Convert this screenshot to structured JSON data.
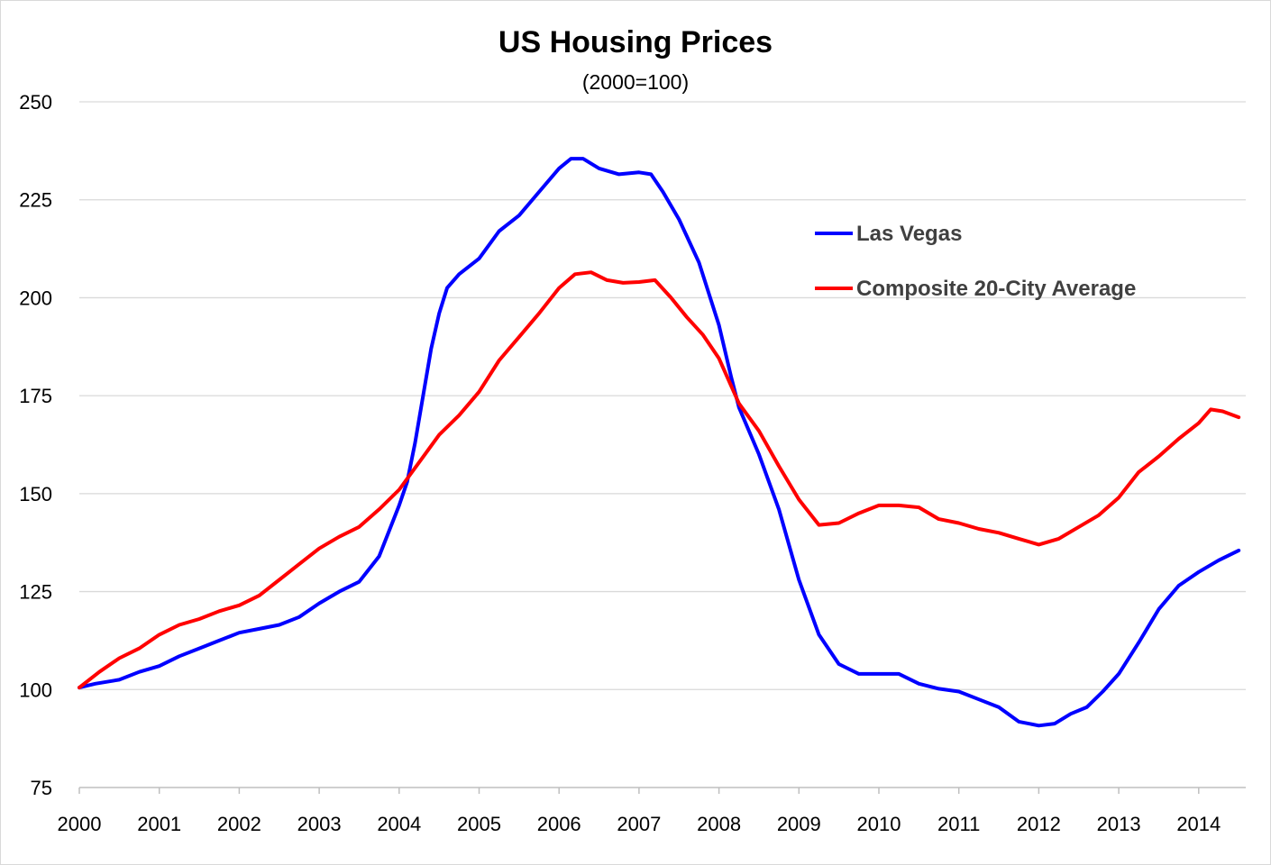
{
  "chart_data": {
    "type": "line",
    "title": "US Housing Prices",
    "subtitle": "(2000=100)",
    "xlabel": "",
    "ylabel": "",
    "xlim": [
      2000,
      2014.6
    ],
    "ylim": [
      75,
      250
    ],
    "x_ticks": [
      "2000",
      "2001",
      "2002",
      "2003",
      "2004",
      "2005",
      "2006",
      "2007",
      "2008",
      "2009",
      "2010",
      "2011",
      "2012",
      "2013",
      "2014"
    ],
    "y_ticks": [
      "75",
      "100",
      "125",
      "150",
      "175",
      "200",
      "225",
      "250"
    ],
    "grid": true,
    "legend_position": "upper-right",
    "series": [
      {
        "name": "Las Vegas",
        "color": "#0000ff",
        "points": [
          [
            2000.0,
            100.5
          ],
          [
            2000.2,
            101.5
          ],
          [
            2000.5,
            102.5
          ],
          [
            2000.75,
            104.5
          ],
          [
            2001.0,
            106.0
          ],
          [
            2001.25,
            108.5
          ],
          [
            2001.5,
            110.5
          ],
          [
            2001.75,
            112.5
          ],
          [
            2002.0,
            114.5
          ],
          [
            2002.25,
            115.5
          ],
          [
            2002.5,
            116.5
          ],
          [
            2002.75,
            118.5
          ],
          [
            2003.0,
            122.0
          ],
          [
            2003.25,
            125.0
          ],
          [
            2003.5,
            127.5
          ],
          [
            2003.75,
            134.0
          ],
          [
            2004.0,
            147.0
          ],
          [
            2004.1,
            153.0
          ],
          [
            2004.2,
            163.0
          ],
          [
            2004.3,
            175.0
          ],
          [
            2004.4,
            187.0
          ],
          [
            2004.5,
            196.0
          ],
          [
            2004.6,
            202.5
          ],
          [
            2004.75,
            206.0
          ],
          [
            2005.0,
            210.0
          ],
          [
            2005.25,
            217.0
          ],
          [
            2005.5,
            221.0
          ],
          [
            2005.75,
            227.0
          ],
          [
            2006.0,
            233.0
          ],
          [
            2006.15,
            235.5
          ],
          [
            2006.3,
            235.5
          ],
          [
            2006.5,
            233.0
          ],
          [
            2006.75,
            231.5
          ],
          [
            2007.0,
            232.0
          ],
          [
            2007.15,
            231.5
          ],
          [
            2007.3,
            227.0
          ],
          [
            2007.5,
            220.0
          ],
          [
            2007.75,
            209.0
          ],
          [
            2008.0,
            193.0
          ],
          [
            2008.15,
            180.0
          ],
          [
            2008.25,
            172.0
          ],
          [
            2008.5,
            160.0
          ],
          [
            2008.75,
            146.0
          ],
          [
            2009.0,
            128.0
          ],
          [
            2009.25,
            114.0
          ],
          [
            2009.5,
            106.5
          ],
          [
            2009.75,
            104.0
          ],
          [
            2010.0,
            104.0
          ],
          [
            2010.25,
            104.0
          ],
          [
            2010.5,
            101.5
          ],
          [
            2010.75,
            100.2
          ],
          [
            2011.0,
            99.5
          ],
          [
            2011.25,
            97.5
          ],
          [
            2011.5,
            95.5
          ],
          [
            2011.75,
            91.8
          ],
          [
            2012.0,
            90.8
          ],
          [
            2012.2,
            91.3
          ],
          [
            2012.4,
            93.8
          ],
          [
            2012.6,
            95.5
          ],
          [
            2012.8,
            99.5
          ],
          [
            2013.0,
            104.0
          ],
          [
            2013.25,
            112.0
          ],
          [
            2013.5,
            120.5
          ],
          [
            2013.75,
            126.5
          ],
          [
            2014.0,
            130.0
          ],
          [
            2014.25,
            133.0
          ],
          [
            2014.5,
            135.5
          ]
        ]
      },
      {
        "name": "Composite 20-City Average",
        "color": "#ff0000",
        "points": [
          [
            2000.0,
            100.5
          ],
          [
            2000.25,
            104.5
          ],
          [
            2000.5,
            108.0
          ],
          [
            2000.75,
            110.5
          ],
          [
            2001.0,
            114.0
          ],
          [
            2001.25,
            116.5
          ],
          [
            2001.5,
            118.0
          ],
          [
            2001.75,
            120.0
          ],
          [
            2002.0,
            121.5
          ],
          [
            2002.25,
            124.0
          ],
          [
            2002.5,
            128.0
          ],
          [
            2002.75,
            132.0
          ],
          [
            2003.0,
            136.0
          ],
          [
            2003.25,
            139.0
          ],
          [
            2003.5,
            141.5
          ],
          [
            2003.75,
            146.0
          ],
          [
            2004.0,
            151.0
          ],
          [
            2004.25,
            158.0
          ],
          [
            2004.5,
            165.0
          ],
          [
            2004.75,
            170.0
          ],
          [
            2005.0,
            176.0
          ],
          [
            2005.25,
            184.0
          ],
          [
            2005.5,
            190.0
          ],
          [
            2005.75,
            196.0
          ],
          [
            2006.0,
            202.5
          ],
          [
            2006.2,
            206.0
          ],
          [
            2006.4,
            206.5
          ],
          [
            2006.6,
            204.5
          ],
          [
            2006.8,
            203.8
          ],
          [
            2007.0,
            204.0
          ],
          [
            2007.2,
            204.5
          ],
          [
            2007.4,
            200.0
          ],
          [
            2007.6,
            195.0
          ],
          [
            2007.8,
            190.5
          ],
          [
            2008.0,
            184.5
          ],
          [
            2008.25,
            173.0
          ],
          [
            2008.5,
            166.0
          ],
          [
            2008.75,
            157.0
          ],
          [
            2009.0,
            148.5
          ],
          [
            2009.25,
            142.0
          ],
          [
            2009.5,
            142.5
          ],
          [
            2009.75,
            145.0
          ],
          [
            2010.0,
            147.0
          ],
          [
            2010.25,
            147.0
          ],
          [
            2010.5,
            146.5
          ],
          [
            2010.75,
            143.5
          ],
          [
            2011.0,
            142.5
          ],
          [
            2011.25,
            141.0
          ],
          [
            2011.5,
            140.0
          ],
          [
            2011.75,
            138.5
          ],
          [
            2012.0,
            137.0
          ],
          [
            2012.25,
            138.5
          ],
          [
            2012.5,
            141.5
          ],
          [
            2012.75,
            144.5
          ],
          [
            2013.0,
            149.0
          ],
          [
            2013.25,
            155.5
          ],
          [
            2013.5,
            159.5
          ],
          [
            2013.75,
            164.0
          ],
          [
            2014.0,
            168.0
          ],
          [
            2014.15,
            171.5
          ],
          [
            2014.3,
            171.0
          ],
          [
            2014.5,
            169.5
          ]
        ]
      }
    ]
  }
}
